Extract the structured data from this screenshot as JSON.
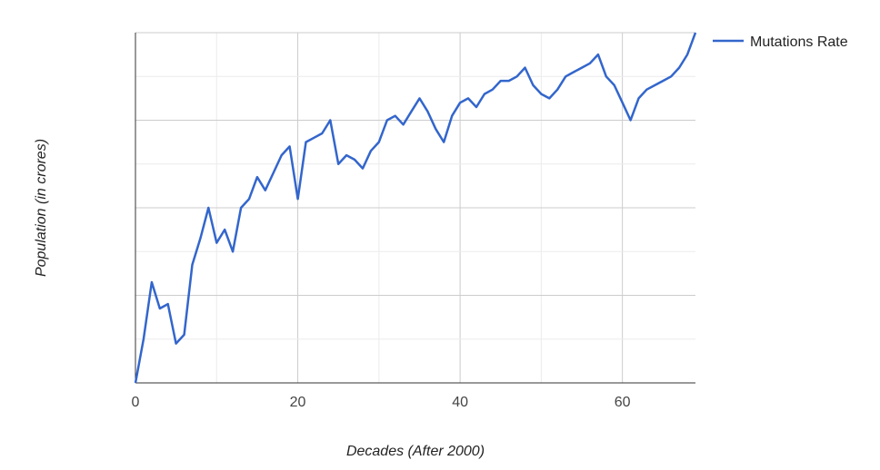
{
  "chart_data": {
    "type": "line",
    "title": "",
    "xlabel": "Decades (After 2000)",
    "ylabel": "Population (in crores)",
    "xlim": [
      0,
      69
    ],
    "ylim": [
      0,
      8
    ],
    "x_ticks": [
      0,
      20,
      40,
      60
    ],
    "x_tick_labels": [
      "0",
      "20",
      "40",
      "60"
    ],
    "grid": true,
    "legend_position": "right",
    "series": [
      {
        "name": "Mutations Rate",
        "color": "#3366cc",
        "x": [
          0,
          1,
          2,
          3,
          4,
          5,
          6,
          7,
          8,
          9,
          10,
          11,
          12,
          13,
          14,
          15,
          16,
          17,
          18,
          19,
          20,
          21,
          22,
          23,
          24,
          25,
          26,
          27,
          28,
          29,
          30,
          31,
          32,
          33,
          34,
          35,
          36,
          37,
          38,
          39,
          40,
          41,
          42,
          43,
          44,
          45,
          46,
          47,
          48,
          49,
          50,
          51,
          52,
          53,
          54,
          55,
          56,
          57,
          58,
          59,
          60,
          61,
          62,
          63,
          64,
          65,
          66,
          67,
          68,
          69
        ],
        "y": [
          0,
          1.0,
          2.3,
          1.7,
          1.8,
          0.9,
          1.1,
          2.7,
          3.3,
          4.0,
          3.2,
          3.5,
          3.0,
          4.0,
          4.2,
          4.7,
          4.4,
          4.8,
          5.2,
          5.4,
          4.2,
          5.5,
          5.6,
          5.7,
          6.0,
          5.0,
          5.2,
          5.1,
          4.9,
          5.3,
          5.5,
          6.0,
          6.1,
          5.9,
          6.2,
          6.5,
          6.2,
          5.8,
          5.5,
          6.1,
          6.4,
          6.5,
          6.3,
          6.6,
          6.7,
          6.9,
          6.9,
          7.0,
          7.2,
          6.8,
          6.6,
          6.5,
          6.7,
          7.0,
          7.1,
          7.2,
          7.3,
          7.5,
          7.0,
          6.8,
          6.4,
          6.0,
          6.5,
          6.7,
          6.8,
          6.9,
          7.0,
          7.2,
          7.5,
          8.0
        ]
      }
    ]
  }
}
